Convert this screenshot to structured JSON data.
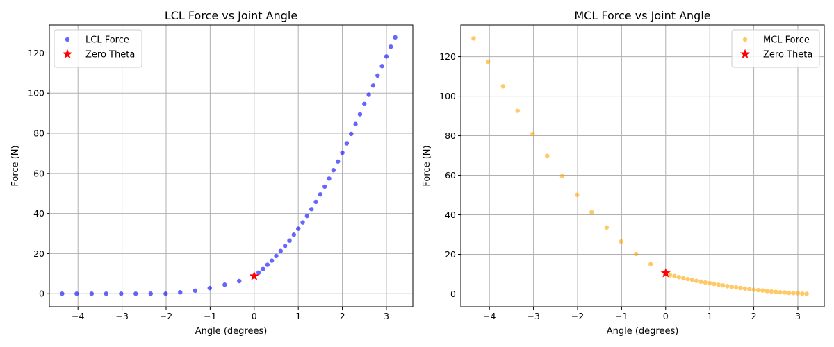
{
  "chart_data": [
    {
      "type": "scatter",
      "title": "LCL Force vs Joint Angle",
      "xlabel": "Angle (degrees)",
      "ylabel": "Force (N)",
      "xlim": [
        -4.65,
        3.6
      ],
      "ylim": [
        -6.5,
        134
      ],
      "xticks": [
        -4,
        -3,
        -2,
        -1,
        0,
        1,
        2,
        3
      ],
      "yticks": [
        0,
        20,
        40,
        60,
        80,
        100,
        120
      ],
      "grid": true,
      "legend_position": "upper-left",
      "series": [
        {
          "name": "LCL Force",
          "color": "#0000ff",
          "alpha": 0.6,
          "marker": "circle",
          "x": [
            -4.36,
            -4.03,
            -3.69,
            -3.36,
            -3.02,
            -2.69,
            -2.35,
            -2.01,
            -1.68,
            -1.34,
            -1.01,
            -0.67,
            -0.34,
            0.1,
            0.2,
            0.3,
            0.4,
            0.5,
            0.6,
            0.7,
            0.8,
            0.9,
            1.0,
            1.1,
            1.2,
            1.3,
            1.4,
            1.5,
            1.6,
            1.7,
            1.8,
            1.9,
            2.0,
            2.1,
            2.2,
            2.3,
            2.4,
            2.5,
            2.6,
            2.7,
            2.8,
            2.9,
            3.0,
            3.1,
            3.2
          ],
          "y": [
            0,
            0,
            0,
            0,
            0,
            0,
            0,
            0,
            0.7,
            1.5,
            2.8,
            4.5,
            6.3,
            10.5,
            12.3,
            14.4,
            16.5,
            18.8,
            21.3,
            23.8,
            26.5,
            29.4,
            32.4,
            35.5,
            38.8,
            42.2,
            45.8,
            49.5,
            53.4,
            57.4,
            61.6,
            65.9,
            70.3,
            75.0,
            79.7,
            84.6,
            89.5,
            94.6,
            99.2,
            103.8,
            108.8,
            113.5,
            118.3,
            123.2,
            127.8
          ]
        },
        {
          "name": "Zero Theta",
          "color": "#ff0000",
          "marker": "star",
          "x": [
            0
          ],
          "y": [
            8.8
          ]
        }
      ]
    },
    {
      "type": "scatter",
      "title": "MCL Force vs Joint Angle",
      "xlabel": "Angle (degrees)",
      "ylabel": "Force (N)",
      "xlim": [
        -4.65,
        3.6
      ],
      "ylim": [
        -6.5,
        136
      ],
      "xticks": [
        -4,
        -3,
        -2,
        -1,
        0,
        1,
        2,
        3
      ],
      "yticks": [
        0,
        20,
        40,
        60,
        80,
        100,
        120
      ],
      "grid": true,
      "legend_position": "upper-right",
      "series": [
        {
          "name": "MCL Force",
          "color": "#ffa500",
          "alpha": 0.6,
          "marker": "circle",
          "x": [
            -4.36,
            -4.03,
            -3.69,
            -3.36,
            -3.02,
            -2.69,
            -2.35,
            -2.01,
            -1.68,
            -1.34,
            -1.01,
            -0.67,
            -0.34,
            0.1,
            0.2,
            0.3,
            0.4,
            0.5,
            0.6,
            0.7,
            0.8,
            0.9,
            1.0,
            1.1,
            1.2,
            1.3,
            1.4,
            1.5,
            1.6,
            1.7,
            1.8,
            1.9,
            2.0,
            2.1,
            2.2,
            2.3,
            2.4,
            2.5,
            2.6,
            2.7,
            2.8,
            2.9,
            3.0,
            3.1,
            3.2
          ],
          "y": [
            129.2,
            117.4,
            105.0,
            92.6,
            80.9,
            69.8,
            59.6,
            50.1,
            41.3,
            33.6,
            26.5,
            20.2,
            15.0,
            9.5,
            9.0,
            8.5,
            8.0,
            7.5,
            7.1,
            6.6,
            6.2,
            5.8,
            5.4,
            5.0,
            4.6,
            4.3,
            3.9,
            3.6,
            3.3,
            3.0,
            2.7,
            2.4,
            2.1,
            1.9,
            1.7,
            1.4,
            1.2,
            1.0,
            0.8,
            0.7,
            0.5,
            0.4,
            0.3,
            0.1,
            0.0
          ]
        },
        {
          "name": "Zero Theta",
          "color": "#ff0000",
          "marker": "star",
          "x": [
            0
          ],
          "y": [
            10.5
          ]
        }
      ]
    }
  ]
}
